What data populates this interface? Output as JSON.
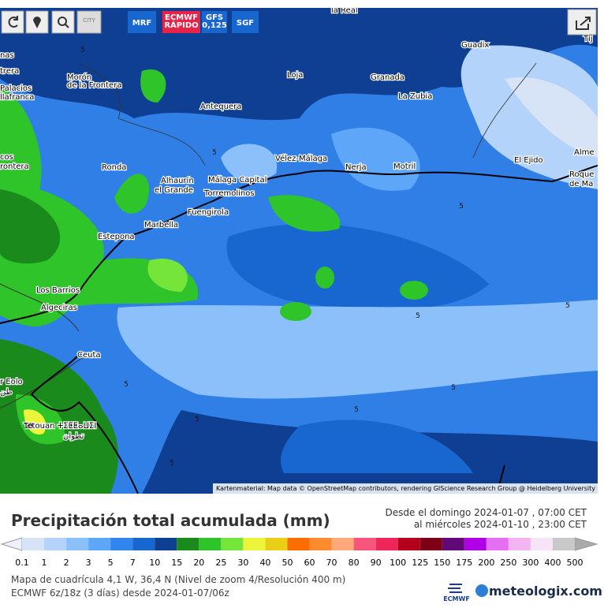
{
  "toolbar": {
    "city": "CITY",
    "models": [
      "MRF",
      "ECMWF RÁPIDO",
      "GFS 0,125",
      "SGF"
    ]
  },
  "map": {
    "places": [
      "la Real",
      "Guadix",
      "Tíj",
      "nas",
      "trera",
      "Palacios",
      "llafranca",
      "Morón",
      "de la Frontera",
      "Loja",
      "Granada",
      "La Zubia",
      "Antequera",
      "cos",
      "rontera",
      "Ronda",
      "Alhaurín",
      "el Grande",
      "Málaga Capital",
      "Torremolinos",
      "Fuengirola",
      "Vélez-Málaga",
      "Nerja",
      "Motril",
      "El Ejido",
      "Alme",
      "Roque",
      "de Ma",
      "Marbella",
      "Estepona",
      "Los Barrios",
      "Algeciras",
      "Ceuta",
      "r Eolo",
      "طن",
      "Tetouan ⵜⵉⵟⵟⴰⵡⵉⵏ",
      "تطوان"
    ],
    "contours": [
      "5",
      "5",
      "5",
      "5",
      "5",
      "5",
      "5",
      "5",
      "5",
      "5",
      "10"
    ],
    "attribution": "Kartenmaterial: Map data © OpenStreetMap contributors, rendering GIScience Research Group @ Heidelberg University"
  },
  "legend": {
    "title": "Precipitación total acumulada (mm)",
    "period": [
      "Desde el domingo 2024-01-07 , 07:00 CET",
      "al miércoles 2024-01-10 , 23:00 CET"
    ],
    "labels": [
      0.1,
      1,
      2,
      3,
      5,
      7,
      10,
      15,
      20,
      25,
      30,
      40,
      50,
      60,
      70,
      80,
      90,
      100,
      125,
      150,
      175,
      200,
      250,
      300,
      400,
      500
    ],
    "colors": [
      "#d7e3f7",
      "#b3d3fa",
      "#8cc0fb",
      "#5ea6f7",
      "#2f86ee",
      "#1867d0",
      "#0e3f93",
      "#1b8a1c",
      "#2fc42a",
      "#76e53a",
      "#ecf43b",
      "#e9cf16",
      "#ff6c00",
      "#ff8b2f",
      "#ffa87a",
      "#f6567b",
      "#ee2559",
      "#b5001b",
      "#7d0016",
      "#610a77",
      "#b000e8",
      "#e66ef0",
      "#f3b5f2",
      "#f7e5f7",
      "#c9c9c9"
    ]
  },
  "footer": {
    "lines": [
      "Mapa de cuadrícula 4,1 W, 36,4 N (Nivel de zoom 4/Resolución 400 m)",
      "ECMWF 6z/18z (3 días) desde 2024-01-07/06z"
    ],
    "logo": "ECMWF",
    "brand": "meteologix.com"
  }
}
